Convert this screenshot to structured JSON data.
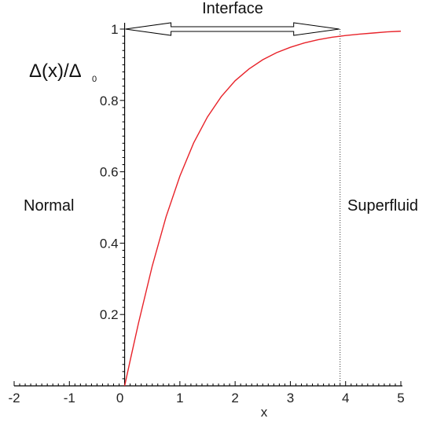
{
  "chart_data": {
    "type": "line",
    "title": "",
    "xlabel": "x",
    "ylabel": "Δ(x)/Δ",
    "ylabel_subscript": "0",
    "xlim": [
      -2,
      5
    ],
    "ylim": [
      0,
      1
    ],
    "x_ticks": [
      -2,
      -1,
      0,
      1,
      2,
      3,
      4,
      5
    ],
    "y_ticks": [
      0.2,
      0.4,
      0.6,
      0.8,
      1
    ],
    "x_tick_labels": [
      "-2",
      "-1",
      "0",
      "1",
      "2",
      "3",
      "4",
      "5"
    ],
    "y_tick_labels": [
      "0.2",
      "0.4",
      "0.6",
      "0.8",
      "1"
    ],
    "grid": false,
    "series": [
      {
        "color": "#e8232a",
        "x": [
          0,
          0.1,
          0.25,
          0.5,
          0.75,
          1,
          1.25,
          1.5,
          1.75,
          2,
          2.25,
          2.5,
          2.75,
          3,
          3.25,
          3.5,
          3.75,
          4,
          4.25,
          4.5,
          4.75,
          5
        ],
        "y": [
          0,
          0.071,
          0.175,
          0.336,
          0.474,
          0.588,
          0.681,
          0.754,
          0.811,
          0.855,
          0.888,
          0.914,
          0.934,
          0.949,
          0.961,
          0.97,
          0.977,
          0.982,
          0.986,
          0.989,
          0.992,
          0.994
        ]
      }
    ],
    "annotations": {
      "interface": "Interface",
      "normal": "Normal",
      "superfluid": "Superfluid",
      "interface_x": 3.9
    }
  },
  "colors": {
    "curve": "#e8232a",
    "axis": "#000000",
    "text": "#111111"
  }
}
